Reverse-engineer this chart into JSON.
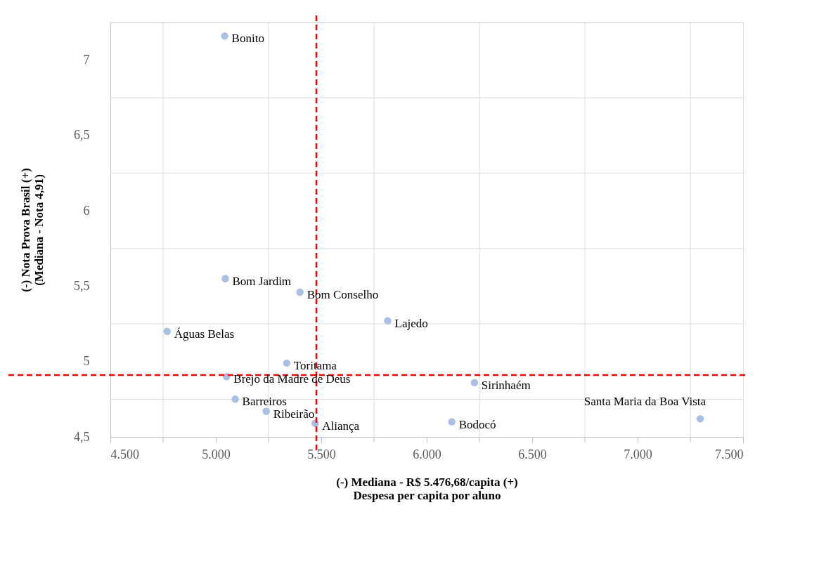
{
  "chart_data": {
    "type": "scatter",
    "xlabel": "(-)        Mediana - R$ 5.476,68/capita        (+)\nDespesa per capita por aluno",
    "ylabel": "(-)        Nota Prova Brasil        (+)\n(Mediana - Nota 4,91)",
    "x": [
      5042,
      5045,
      5399,
      5815,
      4769,
      5336,
      5051,
      6226,
      5092,
      5239,
      5471,
      6119,
      7297
    ],
    "series": [
      {
        "color": "#a9c0e4",
        "values": [
          7.16,
          5.55,
          5.46,
          5.27,
          5.2,
          4.99,
          4.9,
          4.86,
          4.75,
          4.67,
          4.59,
          4.6,
          4.62
        ]
      }
    ],
    "annotations": [
      {
        "text": "Bonito",
        "x": 5042,
        "y": 7.16
      },
      {
        "text": "Bom Jardim",
        "x": 5045,
        "y": 5.55
      },
      {
        "text": "Bom Conselho",
        "x": 5399,
        "y": 5.46
      },
      {
        "text": "Lajedo",
        "x": 5815,
        "y": 5.27
      },
      {
        "text": "Águas Belas",
        "x": 4769,
        "y": 5.2
      },
      {
        "text": "Toritama",
        "x": 5336,
        "y": 4.99
      },
      {
        "text": "Brejo da Madre de Deus",
        "x": 5051,
        "y": 4.9
      },
      {
        "text": "Sirinhaém",
        "x": 6226,
        "y": 4.86
      },
      {
        "text": "Barreiros",
        "x": 5092,
        "y": 4.75
      },
      {
        "text": "Ribeirão",
        "x": 5239,
        "y": 4.67
      },
      {
        "text": "Aliança",
        "x": 5471,
        "y": 4.59
      },
      {
        "text": "Bodocó",
        "x": 6119,
        "y": 4.6
      },
      {
        "text": "Santa Maria da Boa Vista",
        "x": 7297,
        "y": 4.62
      }
    ],
    "ref_lines": [
      {
        "axis": "x",
        "value": 5476.68,
        "color": "#ff0000",
        "line_style": "dashed"
      },
      {
        "axis": "y",
        "value": 4.91,
        "color": "#ff0000",
        "line_style": "dashed"
      }
    ],
    "xlim": [
      4500,
      7500
    ],
    "xticks": [
      {
        "value": 4500,
        "label": "4.500"
      },
      {
        "value": 5000,
        "label": "5.000"
      },
      {
        "value": 5500,
        "label": "5.500"
      },
      {
        "value": 6000,
        "label": "6.000"
      },
      {
        "value": 6500,
        "label": "6.500"
      },
      {
        "value": 7000,
        "label": "7.000"
      },
      {
        "value": 7500,
        "label": "7.500"
      }
    ],
    "ylim": [
      4.5,
      7.25
    ],
    "yticks": [
      {
        "value": 4.5,
        "label": "4,5"
      },
      5,
      {
        "value": 5.5,
        "label": "5,5"
      },
      6,
      {
        "value": 6.5,
        "label": "6,5"
      },
      7
    ],
    "grid": true,
    "marker": "circle"
  }
}
